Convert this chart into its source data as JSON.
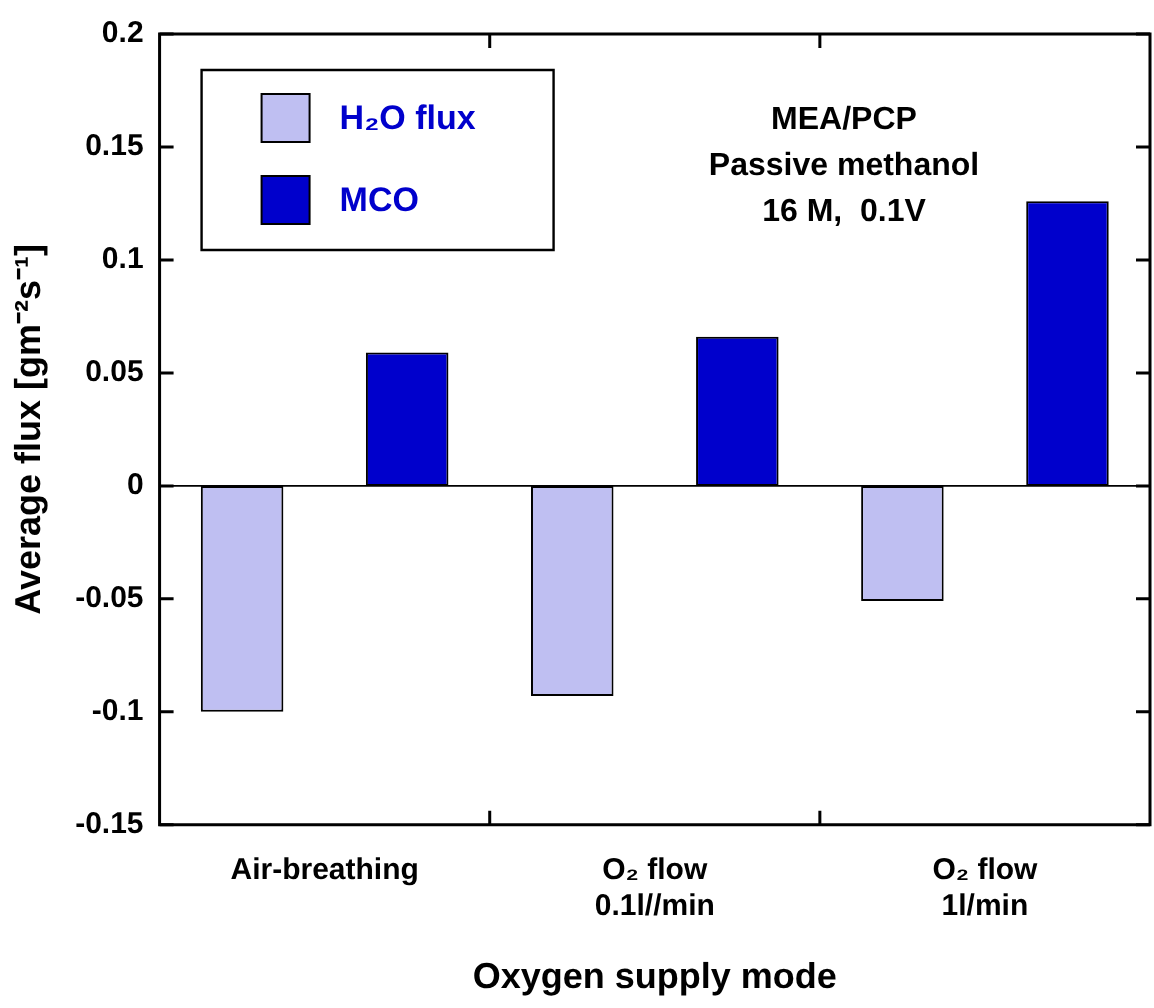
{
  "chart_data": {
    "type": "bar",
    "xlabel": "Oxygen supply mode",
    "ylabel": "Average flux [gm⁻²s⁻¹]",
    "categories": [
      "Air-breathing",
      "O₂ flow\n0.1l//min",
      "O₂ flow\n1l/min"
    ],
    "series": [
      {
        "name": "H₂O flux",
        "color": "#bfbff2",
        "values": [
          -0.1,
          -0.093,
          -0.051
        ]
      },
      {
        "name": "MCO",
        "color": "#0000cc",
        "values": [
          0.059,
          0.066,
          0.126
        ]
      }
    ],
    "ylim": [
      -0.15,
      0.2
    ],
    "yticks": [
      -0.15,
      -0.1,
      -0.05,
      0,
      0.05,
      0.1,
      0.15,
      0.2
    ],
    "annotations": [
      "MEA/PCP",
      "Passive methanol",
      "16 M,  0.1V"
    ],
    "ref_lines": [
      {
        "axis": "y",
        "value": 0,
        "color": "#000000"
      }
    ],
    "grid": false,
    "legend": "top left"
  }
}
